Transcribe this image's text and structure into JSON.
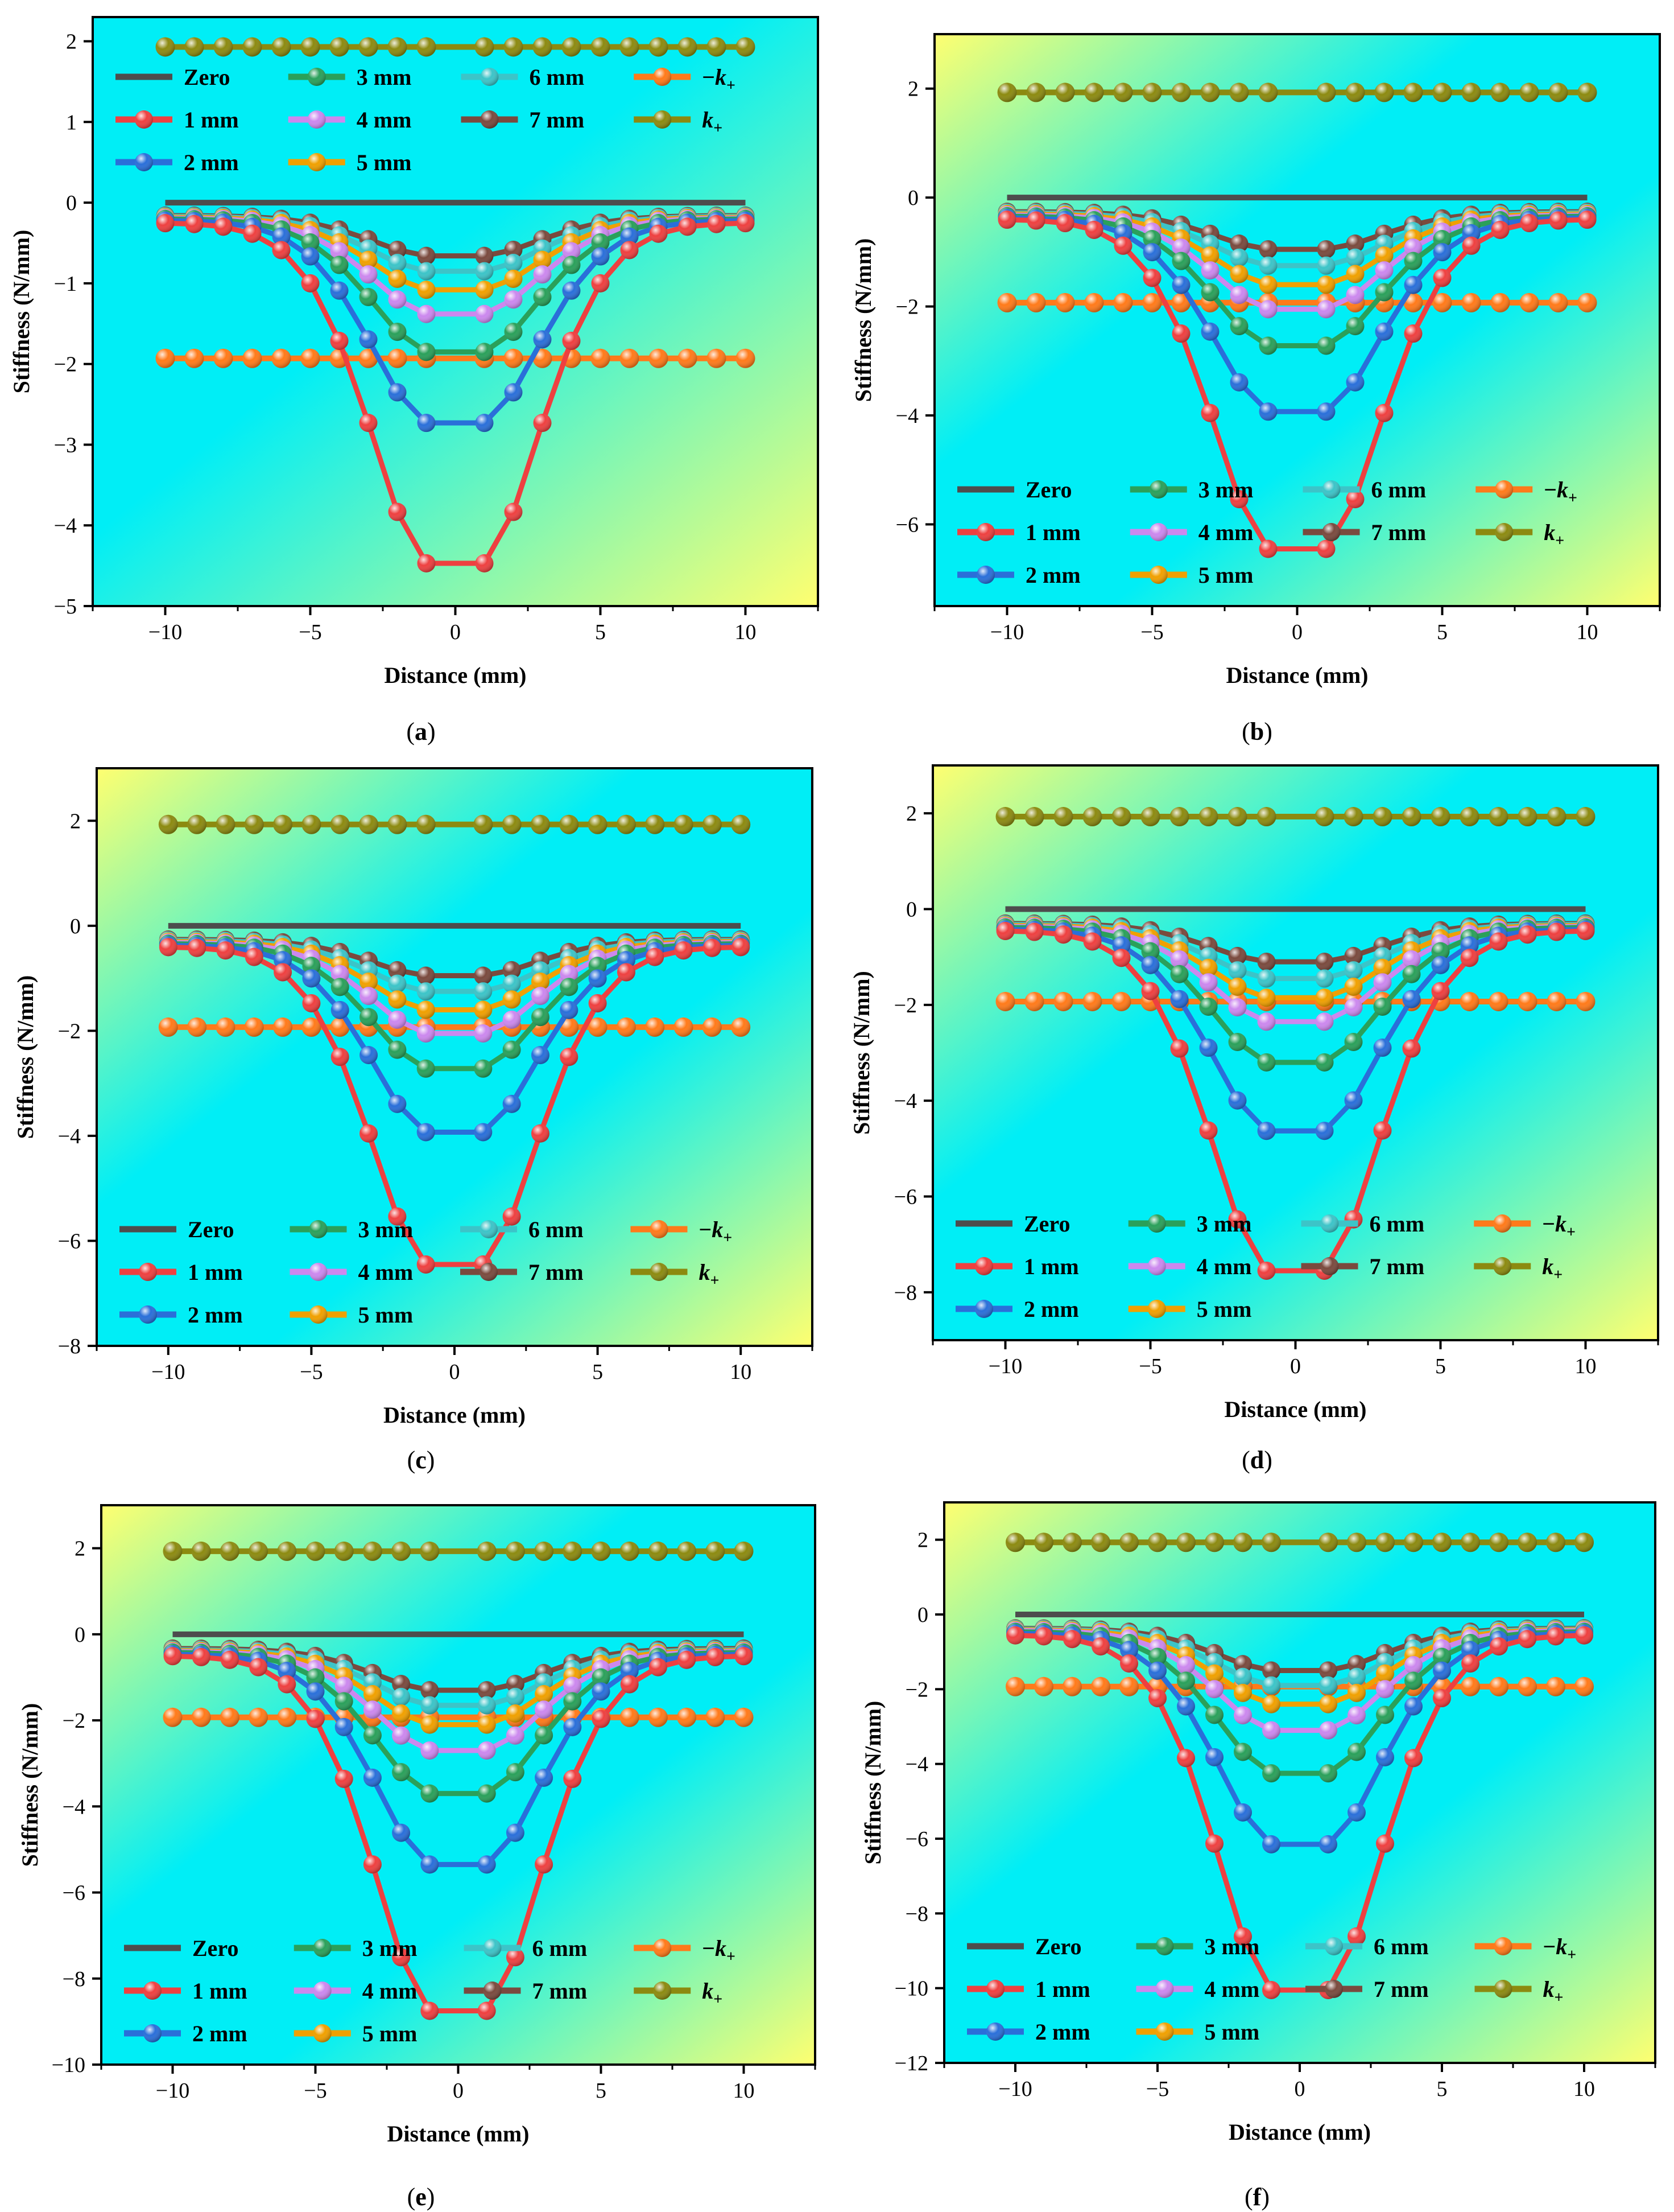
{
  "figure": {
    "panels": [
      {
        "caption_letter": "a"
      },
      {
        "caption_letter": "b"
      },
      {
        "caption_letter": "c"
      },
      {
        "caption_letter": "d"
      },
      {
        "caption_letter": "e"
      },
      {
        "caption_letter": "f"
      }
    ]
  },
  "colors": {
    "Zero": "#4d4d4d",
    "1 mm": "#ee4040",
    "2 mm": "#2a6fd9",
    "3 mm": "#2aa05a",
    "4 mm": "#cc88ee",
    "5 mm": "#f0a000",
    "6 mm": "#3cc4c8",
    "7 mm": "#7a4a3e",
    "-k+": "#ff7a1a",
    "k+": "#8c8a10",
    "bg_cyan": "#00eef6",
    "bg_yellow": "#ffff70"
  },
  "chart_data": [
    {
      "panel": "a",
      "type": "line",
      "xlabel": "Distance (mm)",
      "ylabel": "Stiffness (N/mm)",
      "xlim": [
        -12.5,
        12.5
      ],
      "ylim": [
        -5,
        2.3
      ],
      "xticks": [
        -10,
        -5,
        0,
        5,
        10
      ],
      "yticks": [
        -5,
        -4,
        -3,
        -2,
        -1,
        0,
        1,
        2
      ],
      "legend_position": "top-left",
      "x": [
        -10,
        -9,
        -8,
        -7,
        -6,
        -5,
        -4,
        -3,
        -2,
        -1,
        1,
        2,
        3,
        4,
        5,
        6,
        7,
        8,
        9,
        10
      ],
      "kplus": 1.93,
      "series": [
        {
          "name": "Zero",
          "min": 0,
          "end": 0
        },
        {
          "name": "1 mm",
          "min": -4.47,
          "end": -0.25
        },
        {
          "name": "2 mm",
          "min": -2.73,
          "end": -0.22
        },
        {
          "name": "3 mm",
          "min": -1.85,
          "end": -0.2
        },
        {
          "name": "4 mm",
          "min": -1.38,
          "end": -0.19
        },
        {
          "name": "5 mm",
          "min": -1.08,
          "end": -0.18
        },
        {
          "name": "6 mm",
          "min": -0.85,
          "end": -0.17
        },
        {
          "name": "7 mm",
          "min": -0.66,
          "end": -0.16
        },
        {
          "name": "-k+",
          "value": -1.93
        },
        {
          "name": "k+",
          "value": 1.93
        }
      ]
    },
    {
      "panel": "b",
      "type": "line",
      "xlabel": "Distance (mm)",
      "ylabel": "Stiffness (N/mm)",
      "xlim": [
        -12.5,
        12.5
      ],
      "ylim": [
        -7.5,
        3
      ],
      "xticks": [
        -10,
        -5,
        0,
        5,
        10
      ],
      "yticks": [
        -6,
        -4,
        -2,
        0,
        2
      ],
      "legend_position": "bottom-left",
      "x": [
        -10,
        -9,
        -8,
        -7,
        -6,
        -5,
        -4,
        -3,
        -2,
        -1,
        1,
        2,
        3,
        4,
        5,
        6,
        7,
        8,
        9,
        10
      ],
      "kplus": 1.93,
      "series": [
        {
          "name": "Zero",
          "min": 0,
          "end": 0
        },
        {
          "name": "1 mm",
          "min": -6.45,
          "end": -0.4
        },
        {
          "name": "2 mm",
          "min": -3.93,
          "end": -0.37
        },
        {
          "name": "3 mm",
          "min": -2.72,
          "end": -0.34
        },
        {
          "name": "4 mm",
          "min": -2.05,
          "end": -0.32
        },
        {
          "name": "5 mm",
          "min": -1.6,
          "end": -0.3
        },
        {
          "name": "6 mm",
          "min": -1.25,
          "end": -0.28
        },
        {
          "name": "7 mm",
          "min": -0.95,
          "end": -0.26
        },
        {
          "name": "-k+",
          "value": -1.93
        },
        {
          "name": "k+",
          "value": 1.93
        }
      ]
    },
    {
      "panel": "c",
      "type": "line",
      "xlabel": "Distance (mm)",
      "ylabel": "Stiffness (N/mm)",
      "xlim": [
        -12.5,
        12.5
      ],
      "ylim": [
        -8,
        3
      ],
      "xticks": [
        -10,
        -5,
        0,
        5,
        10
      ],
      "yticks": [
        -8,
        -6,
        -4,
        -2,
        0,
        2
      ],
      "legend_position": "bottom-left",
      "x": [
        -10,
        -9,
        -8,
        -7,
        -6,
        -5,
        -4,
        -3,
        -2,
        -1,
        1,
        2,
        3,
        4,
        5,
        6,
        7,
        8,
        9,
        10
      ],
      "kplus": 1.93,
      "series": [
        {
          "name": "Zero",
          "min": 0,
          "end": 0
        },
        {
          "name": "1 mm",
          "min": -6.45,
          "end": -0.4
        },
        {
          "name": "2 mm",
          "min": -3.93,
          "end": -0.37
        },
        {
          "name": "3 mm",
          "min": -2.72,
          "end": -0.34
        },
        {
          "name": "4 mm",
          "min": -2.05,
          "end": -0.32
        },
        {
          "name": "5 mm",
          "min": -1.6,
          "end": -0.3
        },
        {
          "name": "6 mm",
          "min": -1.25,
          "end": -0.28
        },
        {
          "name": "7 mm",
          "min": -0.95,
          "end": -0.26
        },
        {
          "name": "-k+",
          "value": -1.93
        },
        {
          "name": "k+",
          "value": 1.93
        }
      ]
    },
    {
      "panel": "d",
      "type": "line",
      "xlabel": "Distance (mm)",
      "ylabel": "Stiffness (N/mm)",
      "xlim": [
        -12.5,
        12.5
      ],
      "ylim": [
        -9,
        3
      ],
      "xticks": [
        -10,
        -5,
        0,
        5,
        10
      ],
      "yticks": [
        -8,
        -6,
        -4,
        -2,
        0,
        2
      ],
      "legend_position": "bottom-left",
      "x": [
        -10,
        -9,
        -8,
        -7,
        -6,
        -5,
        -4,
        -3,
        -2,
        -1,
        1,
        2,
        3,
        4,
        5,
        6,
        7,
        8,
        9,
        10
      ],
      "kplus": 1.93,
      "series": [
        {
          "name": "Zero",
          "min": 0,
          "end": 0
        },
        {
          "name": "1 mm",
          "min": -7.55,
          "end": -0.45
        },
        {
          "name": "2 mm",
          "min": -4.63,
          "end": -0.42
        },
        {
          "name": "3 mm",
          "min": -3.2,
          "end": -0.38
        },
        {
          "name": "4 mm",
          "min": -2.35,
          "end": -0.36
        },
        {
          "name": "5 mm",
          "min": -1.85,
          "end": -0.34
        },
        {
          "name": "6 mm",
          "min": -1.45,
          "end": -0.32
        },
        {
          "name": "7 mm",
          "min": -1.1,
          "end": -0.3
        },
        {
          "name": "-k+",
          "value": -1.93
        },
        {
          "name": "k+",
          "value": 1.93
        }
      ]
    },
    {
      "panel": "e",
      "type": "line",
      "xlabel": "Distance (mm)",
      "ylabel": "Stiffness (N/mm)",
      "xlim": [
        -12.5,
        12.5
      ],
      "ylim": [
        -10,
        3
      ],
      "xticks": [
        -10,
        -5,
        0,
        5,
        10
      ],
      "yticks": [
        -10,
        -8,
        -6,
        -4,
        -2,
        0,
        2
      ],
      "legend_position": "bottom-left",
      "x": [
        -10,
        -9,
        -8,
        -7,
        -6,
        -5,
        -4,
        -3,
        -2,
        -1,
        1,
        2,
        3,
        4,
        5,
        6,
        7,
        8,
        9,
        10
      ],
      "kplus": 1.93,
      "series": [
        {
          "name": "Zero",
          "min": 0,
          "end": 0
        },
        {
          "name": "1 mm",
          "min": -8.75,
          "end": -0.5
        },
        {
          "name": "2 mm",
          "min": -5.35,
          "end": -0.46
        },
        {
          "name": "3 mm",
          "min": -3.7,
          "end": -0.42
        },
        {
          "name": "4 mm",
          "min": -2.7,
          "end": -0.4
        },
        {
          "name": "5 mm",
          "min": -2.1,
          "end": -0.38
        },
        {
          "name": "6 mm",
          "min": -1.65,
          "end": -0.36
        },
        {
          "name": "7 mm",
          "min": -1.3,
          "end": -0.33
        },
        {
          "name": "-k+",
          "value": -1.93
        },
        {
          "name": "k+",
          "value": 1.93
        }
      ]
    },
    {
      "panel": "f",
      "type": "line",
      "xlabel": "Distance (mm)",
      "ylabel": "Stiffness (N/mm)",
      "xlim": [
        -12.5,
        12.5
      ],
      "ylim": [
        -12,
        3
      ],
      "xticks": [
        -10,
        -5,
        0,
        5,
        10
      ],
      "yticks": [
        -12,
        -10,
        -8,
        -6,
        -4,
        -2,
        0,
        2
      ],
      "legend_position": "bottom-left",
      "x": [
        -10,
        -9,
        -8,
        -7,
        -6,
        -5,
        -4,
        -3,
        -2,
        -1,
        1,
        2,
        3,
        4,
        5,
        6,
        7,
        8,
        9,
        10
      ],
      "kplus": 1.93,
      "series": [
        {
          "name": "Zero",
          "min": 0,
          "end": 0
        },
        {
          "name": "1 mm",
          "min": -10.05,
          "end": -0.55
        },
        {
          "name": "2 mm",
          "min": -6.15,
          "end": -0.5
        },
        {
          "name": "3 mm",
          "min": -4.25,
          "end": -0.46
        },
        {
          "name": "4 mm",
          "min": -3.1,
          "end": -0.43
        },
        {
          "name": "5 mm",
          "min": -2.4,
          "end": -0.41
        },
        {
          "name": "6 mm",
          "min": -1.9,
          "end": -0.39
        },
        {
          "name": "7 mm",
          "min": -1.5,
          "end": -0.37
        },
        {
          "name": "-k+",
          "value": -1.93
        },
        {
          "name": "k+",
          "value": 1.93
        }
      ]
    }
  ]
}
